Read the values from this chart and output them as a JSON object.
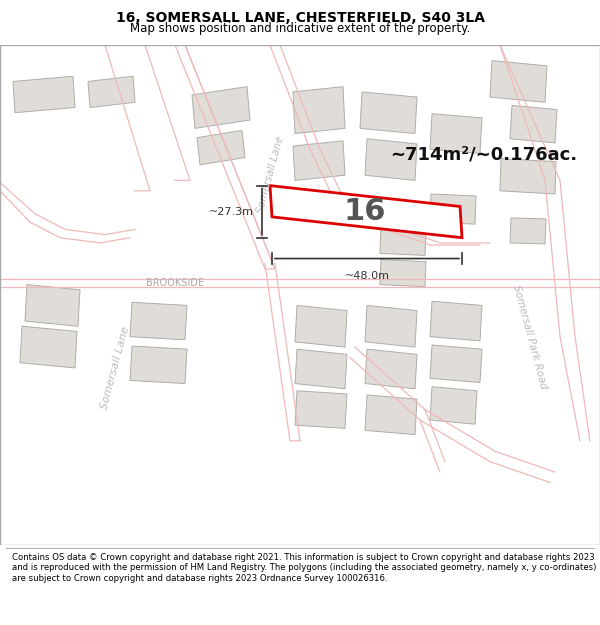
{
  "title": "16, SOMERSALL LANE, CHESTERFIELD, S40 3LA",
  "subtitle": "Map shows position and indicative extent of the property.",
  "footer": "Contains OS data © Crown copyright and database right 2021. This information is subject to Crown copyright and database rights 2023 and is reproduced with the permission of HM Land Registry. The polygons (including the associated geometry, namely x, y co-ordinates) are subject to Crown copyright and database rights 2023 Ordnance Survey 100026316.",
  "map_bg": "#f7f5f2",
  "road_color": "#f0b8b8",
  "road_lw": 0.9,
  "building_fill": "#e0ddd8",
  "building_outline": "#b0ada8",
  "building_lw": 0.7,
  "highlight_fill": "#ffffff",
  "highlight_outline": "#dd0000",
  "highlight_lw": 2.0,
  "area_text": "~714m²/~0.176ac.",
  "plot_number": "16",
  "dim_width": "~48.0m",
  "dim_height": "~27.3m",
  "road_label_color": "#aaaaaa",
  "dim_color": "#333333",
  "brookside_color": "#aaaaaa"
}
